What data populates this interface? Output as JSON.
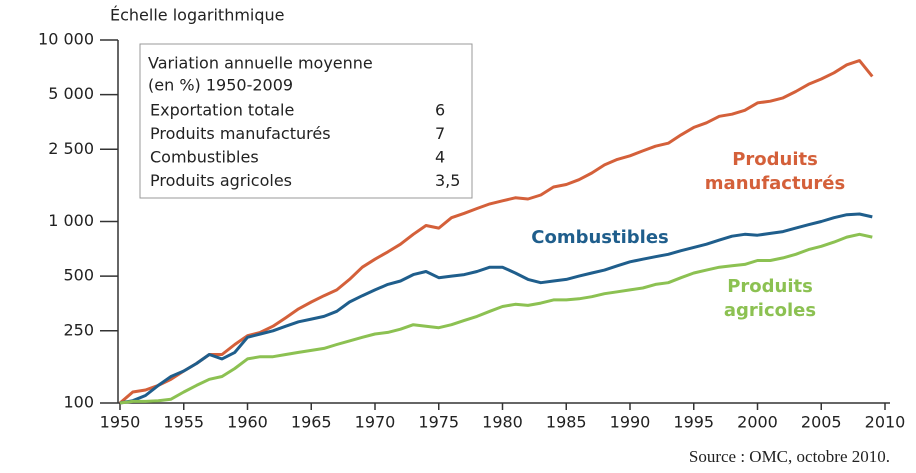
{
  "chart_data": {
    "type": "line",
    "axis_label": "Échelle logarithmique",
    "source": "Source : OMC, octobre 2010.",
    "yscale": "log",
    "ylim": [
      100,
      10000
    ],
    "yticks": [
      {
        "value": 10000,
        "label": "10 000"
      },
      {
        "value": 5000,
        "label": "5 000"
      },
      {
        "value": 2500,
        "label": "2 500"
      },
      {
        "value": 1000,
        "label": "1 000"
      },
      500,
      250,
      100
    ],
    "xlim": [
      1950,
      2010
    ],
    "xticks": [
      1950,
      1955,
      1960,
      1965,
      1970,
      1975,
      1980,
      1985,
      1990,
      1995,
      2000,
      2005,
      2010
    ],
    "x": [
      1950,
      1951,
      1952,
      1953,
      1954,
      1955,
      1956,
      1957,
      1958,
      1959,
      1960,
      1961,
      1962,
      1963,
      1964,
      1965,
      1966,
      1967,
      1968,
      1969,
      1970,
      1971,
      1972,
      1973,
      1974,
      1975,
      1976,
      1977,
      1978,
      1979,
      1980,
      1981,
      1982,
      1983,
      1984,
      1985,
      1986,
      1987,
      1988,
      1989,
      1990,
      1991,
      1992,
      1993,
      1994,
      1995,
      1996,
      1997,
      1998,
      1999,
      2000,
      2001,
      2002,
      2003,
      2004,
      2005,
      2006,
      2007,
      2008,
      2009
    ],
    "series": [
      {
        "label": [
          "Produits",
          "manufacturés"
        ],
        "color": "#d4603a",
        "values": [
          100,
          115,
          118,
          125,
          135,
          150,
          165,
          185,
          185,
          210,
          235,
          245,
          265,
          295,
          330,
          360,
          390,
          420,
          480,
          560,
          620,
          680,
          750,
          850,
          950,
          920,
          1050,
          1110,
          1180,
          1250,
          1300,
          1350,
          1330,
          1400,
          1550,
          1600,
          1700,
          1850,
          2050,
          2200,
          2300,
          2450,
          2600,
          2700,
          3000,
          3300,
          3500,
          3800,
          3900,
          4100,
          4500,
          4600,
          4800,
          5200,
          5700,
          6100,
          6600,
          7300,
          7700,
          6300
        ]
      },
      {
        "label": [
          "Combustibles"
        ],
        "color": "#1f5e8c",
        "values": [
          100,
          103,
          110,
          125,
          140,
          150,
          165,
          185,
          175,
          190,
          230,
          240,
          250,
          265,
          280,
          290,
          300,
          320,
          360,
          390,
          420,
          450,
          470,
          510,
          530,
          490,
          500,
          510,
          530,
          560,
          560,
          520,
          480,
          460,
          470,
          480,
          500,
          520,
          540,
          570,
          600,
          620,
          640,
          660,
          690,
          720,
          750,
          790,
          830,
          850,
          840,
          860,
          880,
          920,
          960,
          1000,
          1050,
          1090,
          1100,
          1060
        ]
      },
      {
        "label": [
          "Produits",
          "agricoles"
        ],
        "color": "#8cc152",
        "values": [
          100,
          102,
          102,
          103,
          105,
          115,
          125,
          135,
          140,
          155,
          175,
          180,
          180,
          185,
          190,
          195,
          200,
          210,
          220,
          230,
          240,
          245,
          255,
          270,
          265,
          260,
          270,
          285,
          300,
          320,
          340,
          350,
          345,
          355,
          370,
          370,
          375,
          385,
          400,
          410,
          420,
          430,
          450,
          460,
          490,
          520,
          540,
          560,
          570,
          580,
          610,
          610,
          630,
          660,
          700,
          730,
          770,
          820,
          850,
          820
        ]
      }
    ],
    "rate_table": {
      "title": [
        "Variation annuelle moyenne",
        "(en %) 1950-2009"
      ],
      "rows": [
        {
          "label": "Exportation totale",
          "value": "6"
        },
        {
          "label": "Produits manufacturés",
          "value": "7"
        },
        {
          "label": "Combustibles",
          "value": "4"
        },
        {
          "label": "Produits agricoles",
          "value": "3,5"
        }
      ]
    }
  }
}
